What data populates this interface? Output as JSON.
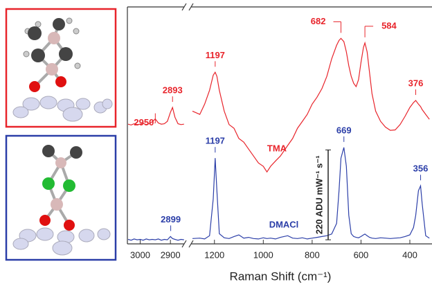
{
  "chart_data": [
    {
      "type": "line",
      "x": [
        3040,
        3030,
        3020,
        3010,
        3000,
        2990,
        2980,
        2970,
        2960,
        2950,
        2940,
        2930,
        2920,
        2910,
        2900,
        2893,
        2885,
        2875,
        2865,
        2855
      ],
      "xlim": [
        3040,
        2850
      ],
      "xticks": [
        3000,
        2900
      ],
      "ylim": [
        -10,
        570
      ],
      "series": [
        {
          "name": "TMA",
          "color": "#e8242b",
          "values": [
            283,
            281,
            284,
            282,
            283,
            285,
            282,
            284,
            289,
            296,
            286,
            283,
            284,
            290,
            312,
            324,
            300,
            284,
            282,
            283
          ]
        },
        {
          "name": "DMACl",
          "color": "#2b3ea8",
          "values": [
            1,
            -1,
            2,
            0,
            1,
            -1,
            2,
            0,
            1,
            0,
            2,
            -1,
            1,
            0,
            8,
            3,
            1,
            -1,
            1,
            0
          ]
        }
      ],
      "annotations": [
        {
          "label": "2950",
          "x": 2950,
          "series": 0
        },
        {
          "label": "2893",
          "x": 2893,
          "series": 0
        },
        {
          "label": "2899",
          "x": 2899,
          "series": 1
        }
      ]
    },
    {
      "type": "line",
      "x": [
        1290,
        1260,
        1240,
        1220,
        1205,
        1197,
        1190,
        1180,
        1160,
        1140,
        1120,
        1100,
        1080,
        1060,
        1040,
        1020,
        1000,
        985,
        970,
        950,
        930,
        900,
        880,
        860,
        840,
        820,
        800,
        780,
        760,
        740,
        720,
        700,
        690,
        682,
        670,
        660,
        650,
        640,
        630,
        620,
        610,
        600,
        590,
        584,
        575,
        565,
        555,
        540,
        520,
        500,
        480,
        460,
        440,
        420,
        400,
        385,
        376,
        365,
        356,
        350,
        335,
        320
      ],
      "xlim": [
        1290,
        315
      ],
      "xticks": [
        1200,
        1000,
        800,
        600,
        400
      ],
      "ylim": [
        -10,
        570
      ],
      "x_label": "Raman Shift (cm⁻¹)",
      "series": [
        {
          "name": "TMA",
          "color": "#e8242b",
          "values": [
            315,
            307,
            332,
            366,
            403,
            410,
            400,
            366,
            315,
            282,
            273,
            248,
            239,
            222,
            205,
            188,
            180,
            166,
            180,
            193,
            205,
            231,
            248,
            273,
            290,
            307,
            332,
            349,
            370,
            400,
            443,
            476,
            488,
            493,
            485,
            460,
            426,
            400,
            383,
            375,
            392,
            434,
            471,
            482,
            460,
            409,
            358,
            315,
            290,
            276,
            268,
            269,
            282,
            302,
            324,
            336,
            341,
            332,
            326,
            319,
            307,
            295
          ]
        },
        {
          "name": "DMACl",
          "color": "#2b3ea8",
          "values": [
            3,
            4,
            2,
            10,
            100,
            200,
            120,
            15,
            5,
            3,
            8,
            12,
            4,
            6,
            3,
            2,
            5,
            3,
            4,
            2,
            6,
            10,
            4,
            3,
            5,
            2,
            4,
            6,
            8,
            10,
            14,
            40,
            120,
            200,
            226,
            180,
            60,
            15,
            8,
            6,
            5,
            8,
            12,
            14,
            10,
            6,
            4,
            3,
            5,
            4,
            3,
            4,
            5,
            8,
            12,
            30,
            60,
            120,
            132,
            90,
            10,
            4
          ]
        }
      ],
      "annotations": [
        {
          "label": "1197",
          "x": 1197,
          "series": 0
        },
        {
          "label": "682",
          "x": 682,
          "series": 0
        },
        {
          "label": "584",
          "x": 584,
          "series": 0
        },
        {
          "label": "376",
          "x": 376,
          "series": 0
        },
        {
          "label": "1197",
          "x": 1197,
          "series": 1
        },
        {
          "label": "669",
          "x": 670,
          "series": 1
        },
        {
          "label": "356",
          "x": 356,
          "series": 1
        }
      ],
      "scale_bar": {
        "label": "220 ADU mW⁻¹ s⁻¹",
        "value": 220
      }
    }
  ]
}
